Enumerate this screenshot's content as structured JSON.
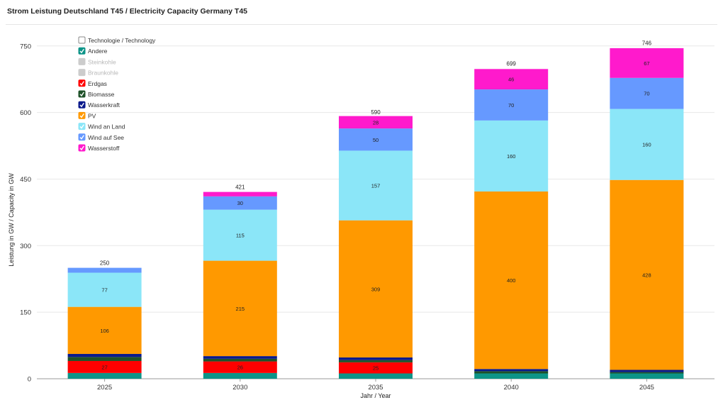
{
  "header": {
    "title": "Strom Leistung Deutschland T45 / Electricity Capacity Germany T45"
  },
  "legend_title": "Technologie / Technology",
  "chart_data": {
    "type": "bar",
    "stacked": true,
    "title": "Strom Leistung Deutschland T45 / Electricity Capacity Germany T45",
    "xlabel": "Jahr / Year",
    "ylabel": "Leistung in GW / Capacity in GW",
    "ylim": [
      0,
      780
    ],
    "yticks": [
      0,
      150,
      300,
      450,
      600,
      750
    ],
    "categories": [
      "2025",
      "2030",
      "2035",
      "2040",
      "2045"
    ],
    "totals": [
      250,
      421,
      590,
      699,
      746
    ],
    "legend_position": "top-left",
    "grid": true,
    "series": [
      {
        "name": "Andere",
        "color": "#0d9488",
        "enabled": true,
        "values": [
          13,
          13,
          12,
          12,
          12
        ]
      },
      {
        "name": "Steinkohle",
        "color": "#cccccc",
        "enabled": false,
        "values": [
          0,
          0,
          0,
          0,
          0
        ]
      },
      {
        "name": "Braunkohle",
        "color": "#cccccc",
        "enabled": false,
        "values": [
          0,
          0,
          0,
          0,
          0
        ]
      },
      {
        "name": "Erdgas",
        "color": "#ff0000",
        "enabled": true,
        "values": [
          27,
          26,
          25,
          0,
          0
        ],
        "labels": [
          "27",
          "26",
          "25",
          "",
          ""
        ]
      },
      {
        "name": "Biomasse",
        "color": "#1e5128",
        "enabled": true,
        "values": [
          9,
          6,
          5,
          5,
          3
        ]
      },
      {
        "name": "Wasserkraft",
        "color": "#0a1a8c",
        "enabled": true,
        "values": [
          7,
          6,
          6,
          5,
          5
        ]
      },
      {
        "name": "PV",
        "color": "#ff9900",
        "enabled": true,
        "values": [
          106,
          215,
          309,
          400,
          428
        ],
        "labels": [
          "106",
          "215",
          "309",
          "400",
          "428"
        ]
      },
      {
        "name": "Wind an Land",
        "color": "#8be6f8",
        "enabled": true,
        "values": [
          77,
          115,
          157,
          160,
          160
        ],
        "labels": [
          "77",
          "115",
          "157",
          "160",
          "160"
        ]
      },
      {
        "name": "Wind auf See",
        "color": "#6699ff",
        "enabled": true,
        "values": [
          11,
          30,
          50,
          70,
          70
        ],
        "labels": [
          "",
          "30",
          "50",
          "70",
          "70"
        ]
      },
      {
        "name": "Wasserstoff",
        "color": "#ff1acc",
        "enabled": true,
        "values": [
          0,
          10,
          28,
          46,
          67
        ],
        "labels": [
          "",
          "",
          "28",
          "46",
          "67"
        ]
      }
    ]
  }
}
